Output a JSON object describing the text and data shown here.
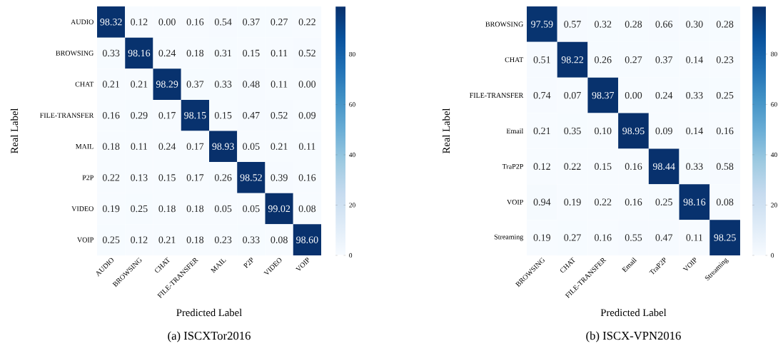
{
  "chart_data": [
    {
      "type": "heatmap",
      "title": "(a)  ISCXTor2016",
      "xlabel": "Predicted Label",
      "ylabel": "Real Label",
      "categories": [
        "AUDIO",
        "BROWSING",
        "CHAT",
        "FILE-TRANSFER",
        "MAIL",
        "P2P",
        "VIDEO",
        "VOIP"
      ],
      "y_categories": [
        "AUDIO",
        "BROWSING",
        "CHAT",
        "FILE-TRANSFER",
        "MAIL",
        "P2P",
        "VIDEO",
        "VOIP"
      ],
      "cells": [
        [
          98.32,
          0.12,
          0.0,
          0.16,
          0.54,
          0.37,
          0.27,
          0.22
        ],
        [
          0.33,
          98.16,
          0.24,
          0.18,
          0.31,
          0.15,
          0.11,
          0.52
        ],
        [
          0.21,
          0.21,
          98.29,
          0.37,
          0.33,
          0.48,
          0.11,
          0.0
        ],
        [
          0.16,
          0.29,
          0.17,
          98.15,
          0.15,
          0.47,
          0.52,
          0.09
        ],
        [
          0.18,
          0.11,
          0.24,
          0.17,
          98.93,
          0.05,
          0.21,
          0.11
        ],
        [
          0.22,
          0.13,
          0.15,
          0.17,
          0.26,
          98.52,
          0.39,
          0.16
        ],
        [
          0.19,
          0.25,
          0.18,
          0.18,
          0.05,
          0.05,
          99.02,
          0.08
        ],
        [
          0.25,
          0.12,
          0.21,
          0.18,
          0.23,
          0.33,
          0.08,
          98.6
        ]
      ],
      "cell_labels": [
        [
          "98.32",
          "0.12",
          "0.00",
          "0.16",
          "0.54",
          "0.37",
          "0.27",
          "0.22"
        ],
        [
          "0.33",
          "98.16",
          "0.24",
          "0.18",
          "0.31",
          "0.15",
          "0.11",
          "0.52"
        ],
        [
          "0.21",
          "0.21",
          "98.29",
          "0.37",
          "0.33",
          "0.48",
          "0.11",
          "0.00"
        ],
        [
          "0.16",
          "0.29",
          "0.17",
          "98.15",
          "0.15",
          "0.47",
          "0.52",
          "0.09"
        ],
        [
          "0.18",
          "0.11",
          "0.24",
          "0.17",
          "98.93",
          "0.05",
          "0.21",
          "0.11"
        ],
        [
          "0.22",
          "0.13",
          "0.15",
          "0.17",
          "0.26",
          "98.52",
          "0.39",
          "0.16"
        ],
        [
          "0.19",
          "0.25",
          "0.18",
          "0.18",
          "0.05",
          "0.05",
          "99.02",
          "0.08"
        ],
        [
          "0.25",
          "0.12",
          "0.21",
          "0.18",
          "0.23",
          "0.33",
          "0.08",
          "98.60"
        ]
      ],
      "clim": [
        0,
        99.02
      ],
      "cticks": [
        0,
        20,
        40,
        60,
        80
      ],
      "data_labels": true
    },
    {
      "type": "heatmap",
      "title": "(b)  ISCX-VPN2016",
      "xlabel": "Predicted Label",
      "ylabel": "Real Label",
      "categories": [
        "BROWSING",
        "CHAT",
        "FILE-TRANSFER",
        "Email",
        "TraP2P",
        "VOIP",
        "Streaming"
      ],
      "y_categories": [
        "BROWSING",
        "CHAT",
        "FILE-TRANSFER",
        "Email",
        "TraP2P",
        "VOIP",
        "Streaming"
      ],
      "cells": [
        [
          97.59,
          0.57,
          0.32,
          0.28,
          0.66,
          0.3,
          0.28
        ],
        [
          0.51,
          98.22,
          0.26,
          0.27,
          0.37,
          0.14,
          0.23
        ],
        [
          0.74,
          0.07,
          98.37,
          0.0,
          0.24,
          0.33,
          0.25
        ],
        [
          0.21,
          0.35,
          0.1,
          98.95,
          0.09,
          0.14,
          0.16
        ],
        [
          0.12,
          0.22,
          0.15,
          0.16,
          98.44,
          0.33,
          0.58
        ],
        [
          0.94,
          0.19,
          0.22,
          0.16,
          0.25,
          98.16,
          0.08
        ],
        [
          0.19,
          0.27,
          0.16,
          0.55,
          0.47,
          0.11,
          98.25
        ]
      ],
      "cell_labels": [
        [
          "97.59",
          "0.57",
          "0.32",
          "0.28",
          "0.66",
          "0.30",
          "0.28"
        ],
        [
          "0.51",
          "98.22",
          "0.26",
          "0.27",
          "0.37",
          "0.14",
          "0.23"
        ],
        [
          "0.74",
          "0.07",
          "98.37",
          "0.00",
          "0.24",
          "0.33",
          "0.25"
        ],
        [
          "0.21",
          "0.35",
          "0.10",
          "98.95",
          "0.09",
          "0.14",
          "0.16"
        ],
        [
          "0.12",
          "0.22",
          "0.15",
          "0.16",
          "98.44",
          "0.33",
          "0.58"
        ],
        [
          "0.94",
          "0.19",
          "0.22",
          "0.16",
          "0.25",
          "98.16",
          "0.08"
        ],
        [
          "0.19",
          "0.27",
          "0.16",
          "0.55",
          "0.47",
          "0.11",
          "98.25"
        ]
      ],
      "clim": [
        0,
        98.95
      ],
      "cticks": [
        0,
        20,
        40,
        60,
        80
      ],
      "data_labels": true
    }
  ]
}
